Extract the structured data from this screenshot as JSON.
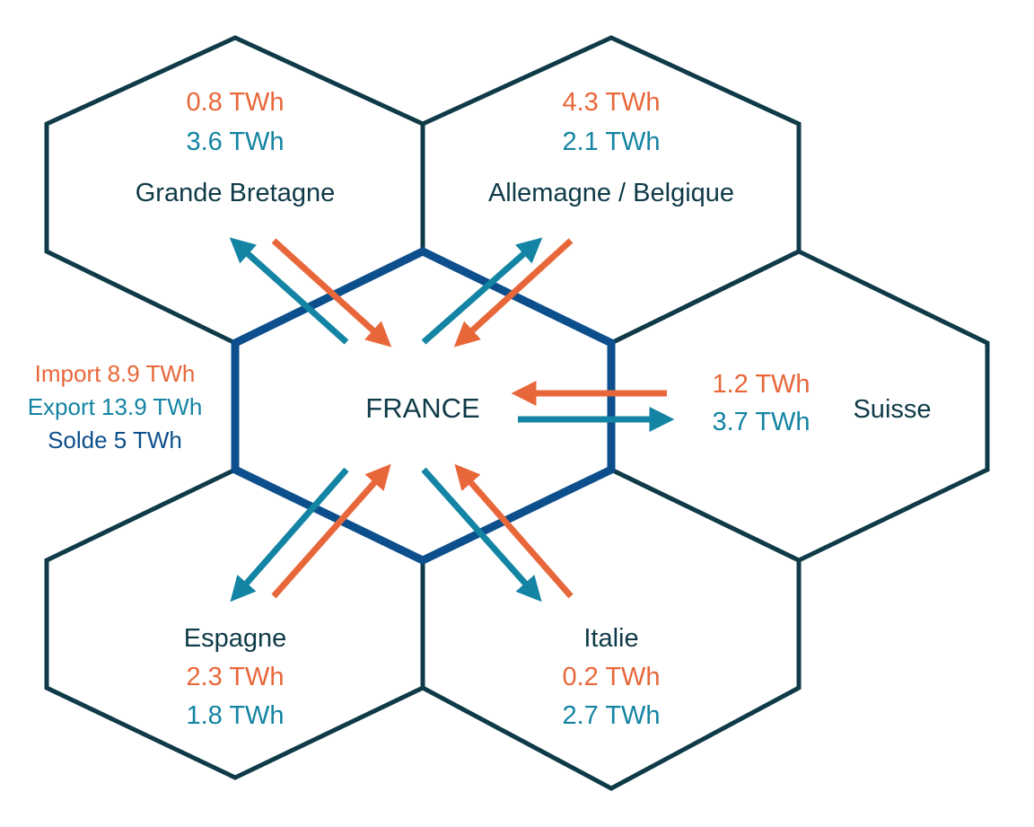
{
  "colors": {
    "import": "#e8673a",
    "export": "#1384a3",
    "outline": "#0f3a48",
    "france_border": "#0c4f8c",
    "label": "#0f3a48",
    "balance": "#0c4f8c"
  },
  "center": {
    "name": "FRANCE"
  },
  "totals": {
    "import": "Import 8.9 TWh",
    "export": "Export 13.9 TWh",
    "balance": "Solde 5 TWh"
  },
  "neighbors": {
    "gb": {
      "name": "Grande Bretagne",
      "import": "0.8 TWh",
      "export": "3.6 TWh"
    },
    "de_be": {
      "name": "Allemagne / Belgique",
      "import": "4.3 TWh",
      "export": "2.1 TWh"
    },
    "ch": {
      "name": "Suisse",
      "import": "1.2 TWh",
      "export": "3.7 TWh"
    },
    "es": {
      "name": "Espagne",
      "import": "2.3 TWh",
      "export": "1.8 TWh"
    },
    "it": {
      "name": "Italie",
      "import": "0.2 TWh",
      "export": "2.7 TWh"
    }
  }
}
